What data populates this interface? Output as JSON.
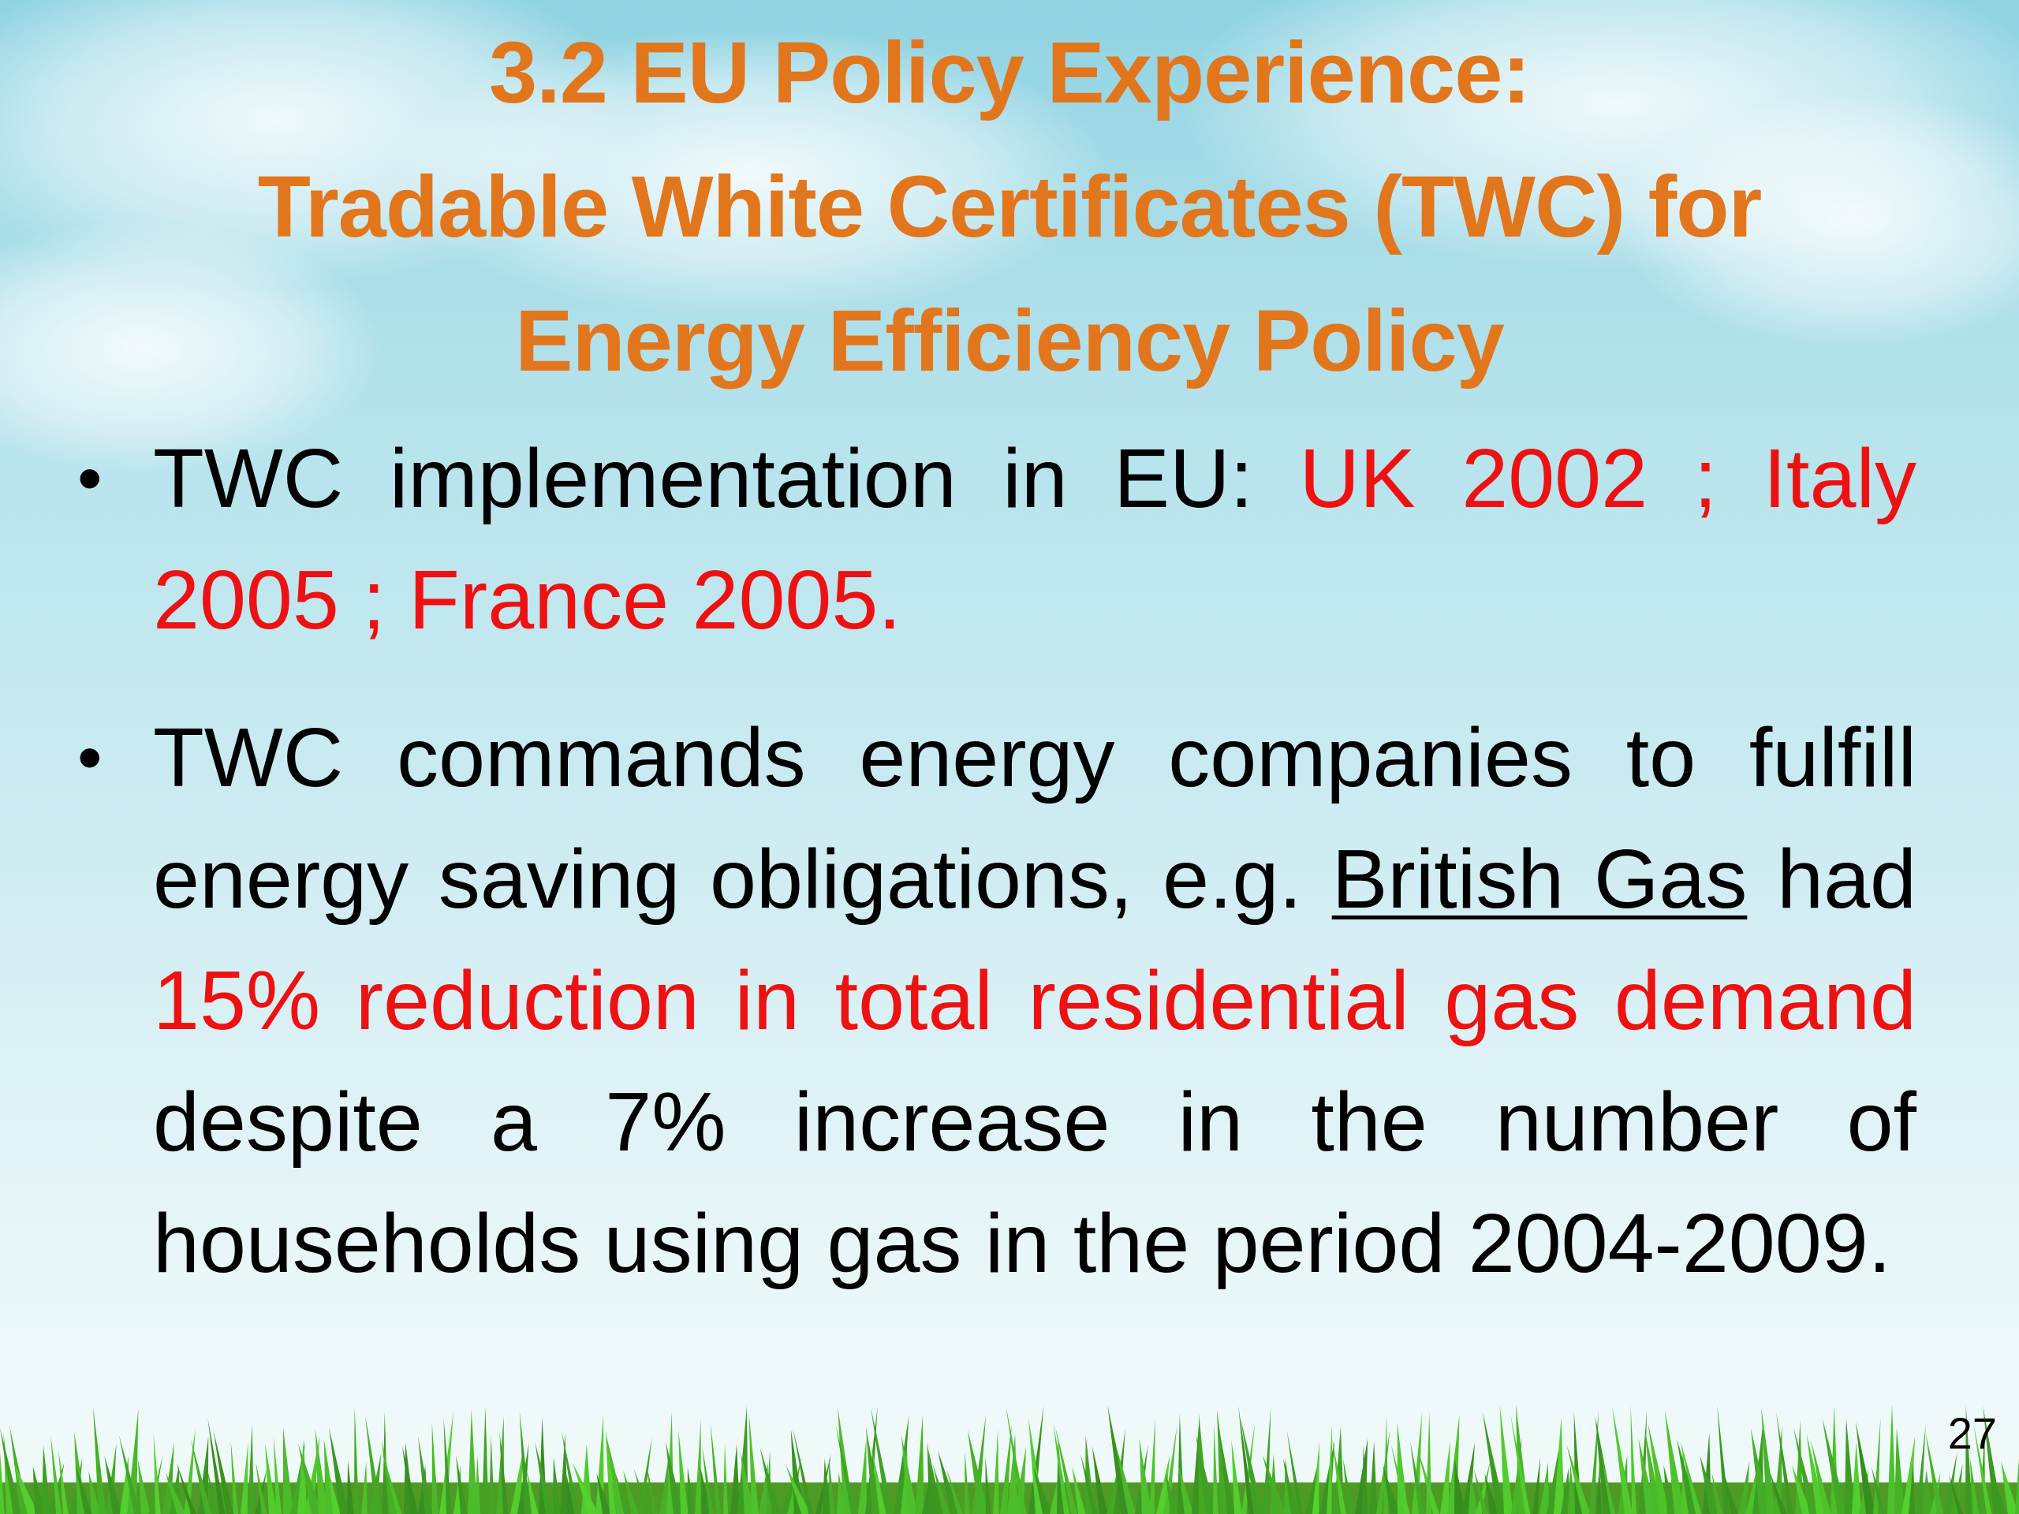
{
  "slide": {
    "title_lines": [
      "3.2 EU Policy Experience:",
      "Tradable White Certificates (TWC) for",
      "Energy Efficiency Policy"
    ],
    "bullet1": {
      "text_black": "TWC implementation in EU: ",
      "text_red": "UK 2002 ; Italy 2005 ; France 2005."
    },
    "bullet2": {
      "part1": "TWC commands energy companies to fulfill energy saving obligations, e.g. ",
      "underlined": "British Gas",
      "part2": " had ",
      "red": "15% reduction in total residential gas demand",
      "part3": " despite a 7% increase in the number of households using gas in the period 2004-2009."
    },
    "page_number": "27"
  },
  "colors": {
    "title": "#e2761c",
    "highlight": "#ee1111",
    "text": "#000000"
  }
}
